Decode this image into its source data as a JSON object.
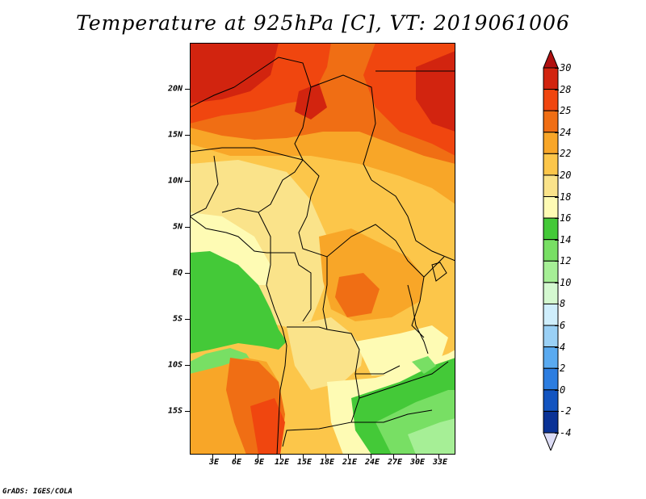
{
  "title": "Temperature at 925hPa [C], VT: 2019061006",
  "credit": "GrADS: IGES/COLA",
  "chart_data": {
    "type": "heatmap",
    "variable": "Temperature at 925hPa",
    "units": "C",
    "valid_time": "2019061006",
    "lon_range": [
      0,
      35
    ],
    "lat_range": [
      -20,
      25
    ],
    "x_ticks": [
      "3E",
      "6E",
      "9E",
      "12E",
      "15E",
      "18E",
      "21E",
      "24E",
      "27E",
      "30E",
      "33E"
    ],
    "y_ticks": [
      "20N",
      "15N",
      "10N",
      "5N",
      "EQ",
      "5S",
      "10S",
      "15S"
    ],
    "colorbar": {
      "levels": [
        "30",
        "28",
        "25",
        "24",
        "22",
        "20",
        "18",
        "16",
        "14",
        "12",
        "10",
        "8",
        "6",
        "4",
        "2",
        "0",
        "-2",
        "-4"
      ],
      "colors": [
        "#d2240f",
        "#f0460f",
        "#f06e14",
        "#f8a628",
        "#fcc64a",
        "#fae38a",
        "#fefbb4",
        "#44c938",
        "#78df64",
        "#a6ef96",
        "#d4f8d0",
        "#cfeefc",
        "#9ad0f5",
        "#5aaaf0",
        "#2c7de0",
        "#1354c0",
        "#0a3296",
        "#09106a"
      ],
      "over_color": "#b01010",
      "under_color": "#dcdcf5"
    }
  },
  "colors": {
    "sea_cool": "#44c938",
    "sea_mid": "#78df64",
    "warm_land": "#fcc64a"
  }
}
